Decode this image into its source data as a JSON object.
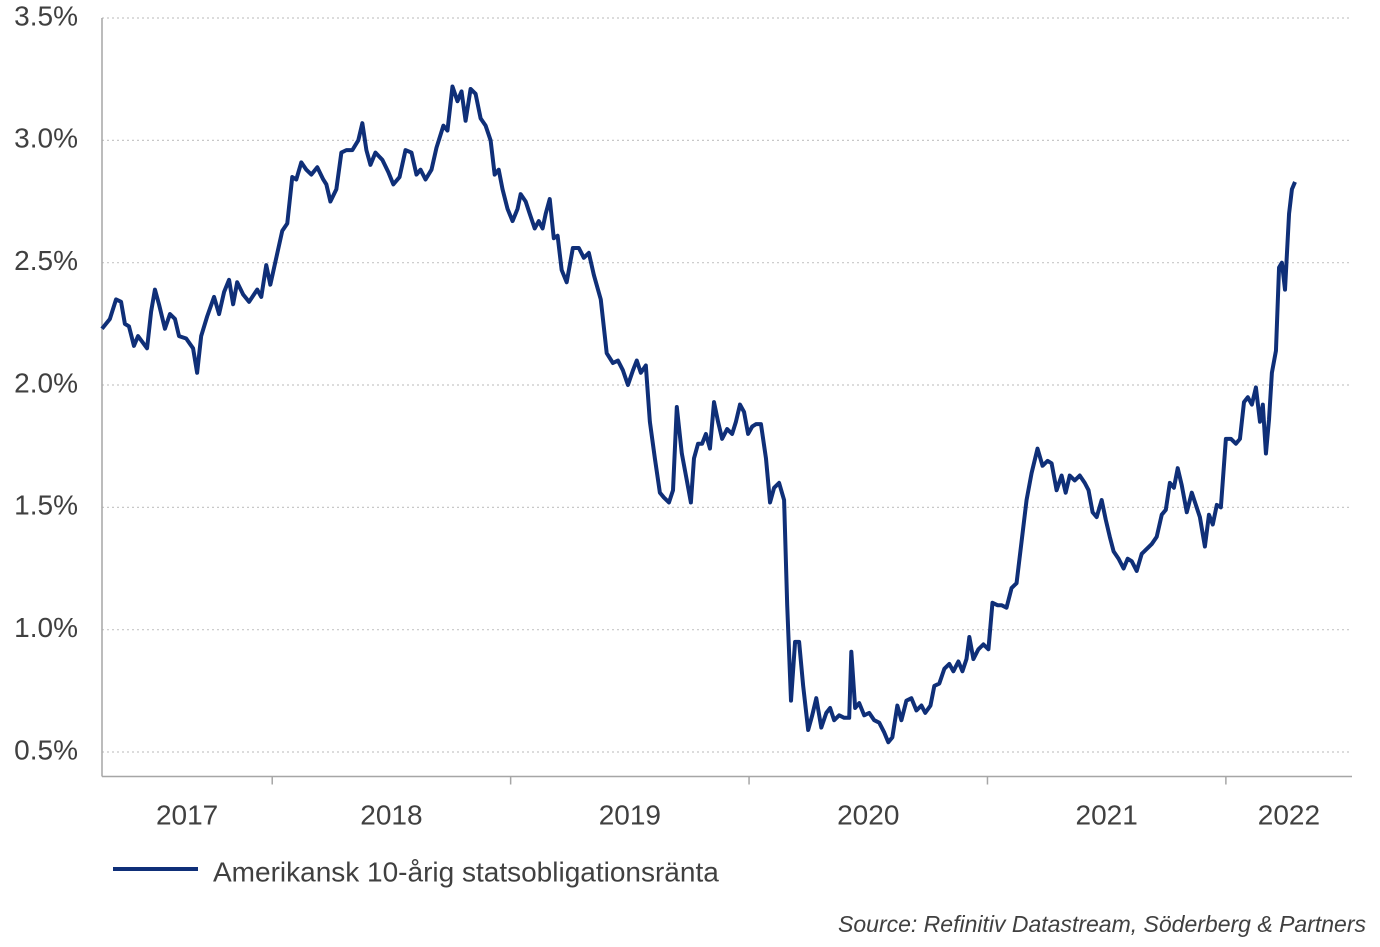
{
  "chart_data": {
    "type": "line",
    "x": [
      2017.286,
      2017.319,
      2017.345,
      2017.366,
      2017.382,
      2017.399,
      2017.42,
      2017.437,
      2017.475,
      2017.492,
      2017.508,
      2017.525,
      2017.55,
      2017.571,
      2017.592,
      2017.609,
      2017.639,
      2017.668,
      2017.685,
      2017.702,
      2017.727,
      2017.756,
      2017.777,
      2017.798,
      2017.819,
      2017.836,
      2017.853,
      2017.878,
      2017.903,
      2017.937,
      2017.954,
      2017.975,
      2017.992,
      2018.017,
      2018.042,
      2018.063,
      2018.084,
      2018.101,
      2018.122,
      2018.143,
      2018.164,
      2018.189,
      2018.214,
      2018.227,
      2018.244,
      2018.269,
      2018.29,
      2018.311,
      2018.336,
      2018.361,
      2018.378,
      2018.395,
      2018.412,
      2018.433,
      2018.462,
      2018.487,
      2018.508,
      2018.534,
      2018.559,
      2018.584,
      2018.605,
      2018.622,
      2018.643,
      2018.668,
      2018.689,
      2018.718,
      2018.735,
      2018.756,
      2018.777,
      2018.794,
      2018.811,
      2018.832,
      2018.853,
      2018.874,
      2018.895,
      2018.916,
      2018.933,
      2018.95,
      2018.966,
      2018.987,
      2019.008,
      2019.029,
      2019.042,
      2019.063,
      2019.08,
      2019.101,
      2019.118,
      2019.134,
      2019.147,
      2019.164,
      2019.181,
      2019.197,
      2019.214,
      2019.235,
      2019.261,
      2019.286,
      2019.307,
      2019.328,
      2019.349,
      2019.378,
      2019.403,
      2019.429,
      2019.45,
      2019.471,
      2019.492,
      2019.513,
      2019.529,
      2019.546,
      2019.567,
      2019.584,
      2019.605,
      2019.626,
      2019.643,
      2019.664,
      2019.681,
      2019.697,
      2019.718,
      2019.739,
      2019.756,
      2019.769,
      2019.786,
      2019.803,
      2019.819,
      2019.836,
      2019.853,
      2019.87,
      2019.887,
      2019.908,
      2019.929,
      2019.945,
      2019.962,
      2019.979,
      2019.996,
      2020.013,
      2020.029,
      2020.05,
      2020.071,
      2020.088,
      2020.105,
      2020.126,
      2020.147,
      2020.16,
      2020.176,
      2020.193,
      2020.21,
      2020.227,
      2020.248,
      2020.265,
      2020.282,
      2020.303,
      2020.324,
      2020.34,
      2020.357,
      2020.378,
      2020.399,
      2020.42,
      2020.429,
      2020.445,
      2020.462,
      2020.483,
      2020.504,
      2020.525,
      2020.546,
      2020.567,
      2020.584,
      2020.601,
      2020.622,
      2020.639,
      2020.66,
      2020.681,
      2020.702,
      2020.723,
      2020.739,
      2020.761,
      2020.777,
      2020.798,
      2020.819,
      2020.84,
      2020.857,
      2020.878,
      2020.895,
      2020.912,
      2020.924,
      2020.941,
      2020.962,
      2020.983,
      2021.004,
      2021.021,
      2021.042,
      2021.059,
      2021.08,
      2021.101,
      2021.122,
      2021.143,
      2021.164,
      2021.185,
      2021.21,
      2021.231,
      2021.252,
      2021.269,
      2021.29,
      2021.311,
      2021.328,
      2021.345,
      2021.366,
      2021.387,
      2021.408,
      2021.424,
      2021.441,
      2021.458,
      2021.479,
      2021.496,
      2021.513,
      2021.529,
      2021.55,
      2021.571,
      2021.588,
      2021.605,
      2021.626,
      2021.647,
      2021.668,
      2021.689,
      2021.71,
      2021.731,
      2021.748,
      2021.765,
      2021.782,
      2021.798,
      2021.815,
      2021.836,
      2021.857,
      2021.874,
      2021.891,
      2021.912,
      2021.929,
      2021.945,
      2021.962,
      2021.979,
      2022.0,
      2022.021,
      2022.042,
      2022.059,
      2022.076,
      2022.092,
      2022.109,
      2022.126,
      2022.143,
      2022.155,
      2022.168,
      2022.181,
      2022.193,
      2022.21,
      2022.223,
      2022.235,
      2022.248,
      2022.265,
      2022.277,
      2022.29
    ],
    "series": [
      {
        "name": "Amerikansk 10-årig statsobligationsränta",
        "color": "#0f2f78",
        "values": [
          2.23,
          2.27,
          2.35,
          2.34,
          2.25,
          2.24,
          2.16,
          2.2,
          2.15,
          2.3,
          2.39,
          2.33,
          2.23,
          2.29,
          2.27,
          2.2,
          2.19,
          2.15,
          2.05,
          2.2,
          2.28,
          2.36,
          2.29,
          2.38,
          2.43,
          2.33,
          2.42,
          2.37,
          2.34,
          2.39,
          2.36,
          2.49,
          2.41,
          2.52,
          2.63,
          2.66,
          2.85,
          2.84,
          2.91,
          2.88,
          2.86,
          2.89,
          2.84,
          2.82,
          2.75,
          2.8,
          2.95,
          2.96,
          2.96,
          3.0,
          3.07,
          2.96,
          2.9,
          2.95,
          2.92,
          2.87,
          2.82,
          2.85,
          2.96,
          2.95,
          2.86,
          2.88,
          2.84,
          2.88,
          2.97,
          3.06,
          3.04,
          3.22,
          3.16,
          3.2,
          3.08,
          3.21,
          3.19,
          3.09,
          3.06,
          3.0,
          2.86,
          2.88,
          2.8,
          2.72,
          2.67,
          2.72,
          2.78,
          2.75,
          2.7,
          2.64,
          2.67,
          2.64,
          2.7,
          2.76,
          2.6,
          2.61,
          2.47,
          2.42,
          2.56,
          2.56,
          2.52,
          2.54,
          2.45,
          2.35,
          2.13,
          2.09,
          2.1,
          2.06,
          2.0,
          2.06,
          2.1,
          2.05,
          2.08,
          1.85,
          1.7,
          1.56,
          1.54,
          1.52,
          1.57,
          1.91,
          1.72,
          1.61,
          1.52,
          1.7,
          1.76,
          1.76,
          1.8,
          1.74,
          1.93,
          1.85,
          1.78,
          1.82,
          1.8,
          1.85,
          1.92,
          1.89,
          1.8,
          1.83,
          1.84,
          1.84,
          1.7,
          1.52,
          1.58,
          1.6,
          1.53,
          1.1,
          0.71,
          0.95,
          0.95,
          0.77,
          0.59,
          0.65,
          0.72,
          0.6,
          0.66,
          0.68,
          0.63,
          0.65,
          0.64,
          0.64,
          0.91,
          0.68,
          0.7,
          0.65,
          0.66,
          0.63,
          0.62,
          0.58,
          0.54,
          0.56,
          0.69,
          0.63,
          0.71,
          0.72,
          0.67,
          0.69,
          0.66,
          0.69,
          0.77,
          0.78,
          0.84,
          0.86,
          0.83,
          0.87,
          0.83,
          0.88,
          0.97,
          0.88,
          0.92,
          0.94,
          0.92,
          1.11,
          1.1,
          1.1,
          1.09,
          1.17,
          1.19,
          1.36,
          1.53,
          1.64,
          1.74,
          1.67,
          1.69,
          1.68,
          1.57,
          1.63,
          1.56,
          1.63,
          1.61,
          1.63,
          1.6,
          1.57,
          1.48,
          1.46,
          1.53,
          1.45,
          1.38,
          1.32,
          1.29,
          1.25,
          1.29,
          1.28,
          1.24,
          1.31,
          1.33,
          1.35,
          1.38,
          1.47,
          1.49,
          1.6,
          1.58,
          1.66,
          1.59,
          1.48,
          1.56,
          1.51,
          1.46,
          1.34,
          1.47,
          1.43,
          1.51,
          1.5,
          1.78,
          1.78,
          1.76,
          1.78,
          1.93,
          1.95,
          1.92,
          1.99,
          1.85,
          1.92,
          1.72,
          1.86,
          2.05,
          2.14,
          2.48,
          2.5,
          2.39,
          2.7,
          2.8,
          2.83
        ]
      }
    ],
    "xlim": [
      2017.286,
      2022.529
    ],
    "xticks": [
      2018,
      2019,
      2020,
      2021,
      2022
    ],
    "xlabels": [
      2017,
      2018,
      2019,
      2020,
      2021,
      2022
    ],
    "ylim": [
      0.4,
      3.5
    ],
    "yticks": [
      {
        "value": 0.5,
        "label": "0.5%"
      },
      {
        "value": 1.0,
        "label": "1.0%"
      },
      {
        "value": 1.5,
        "label": "1.5%"
      },
      {
        "value": 2.0,
        "label": "2.0%"
      },
      {
        "value": 2.5,
        "label": "2.5%"
      },
      {
        "value": 3.0,
        "label": "3.0%"
      },
      {
        "value": 3.5,
        "label": "3.5%"
      }
    ],
    "grid": true,
    "legend": "bottom",
    "source": "Source: Refinitiv Datastream, Söderberg & Partners"
  }
}
